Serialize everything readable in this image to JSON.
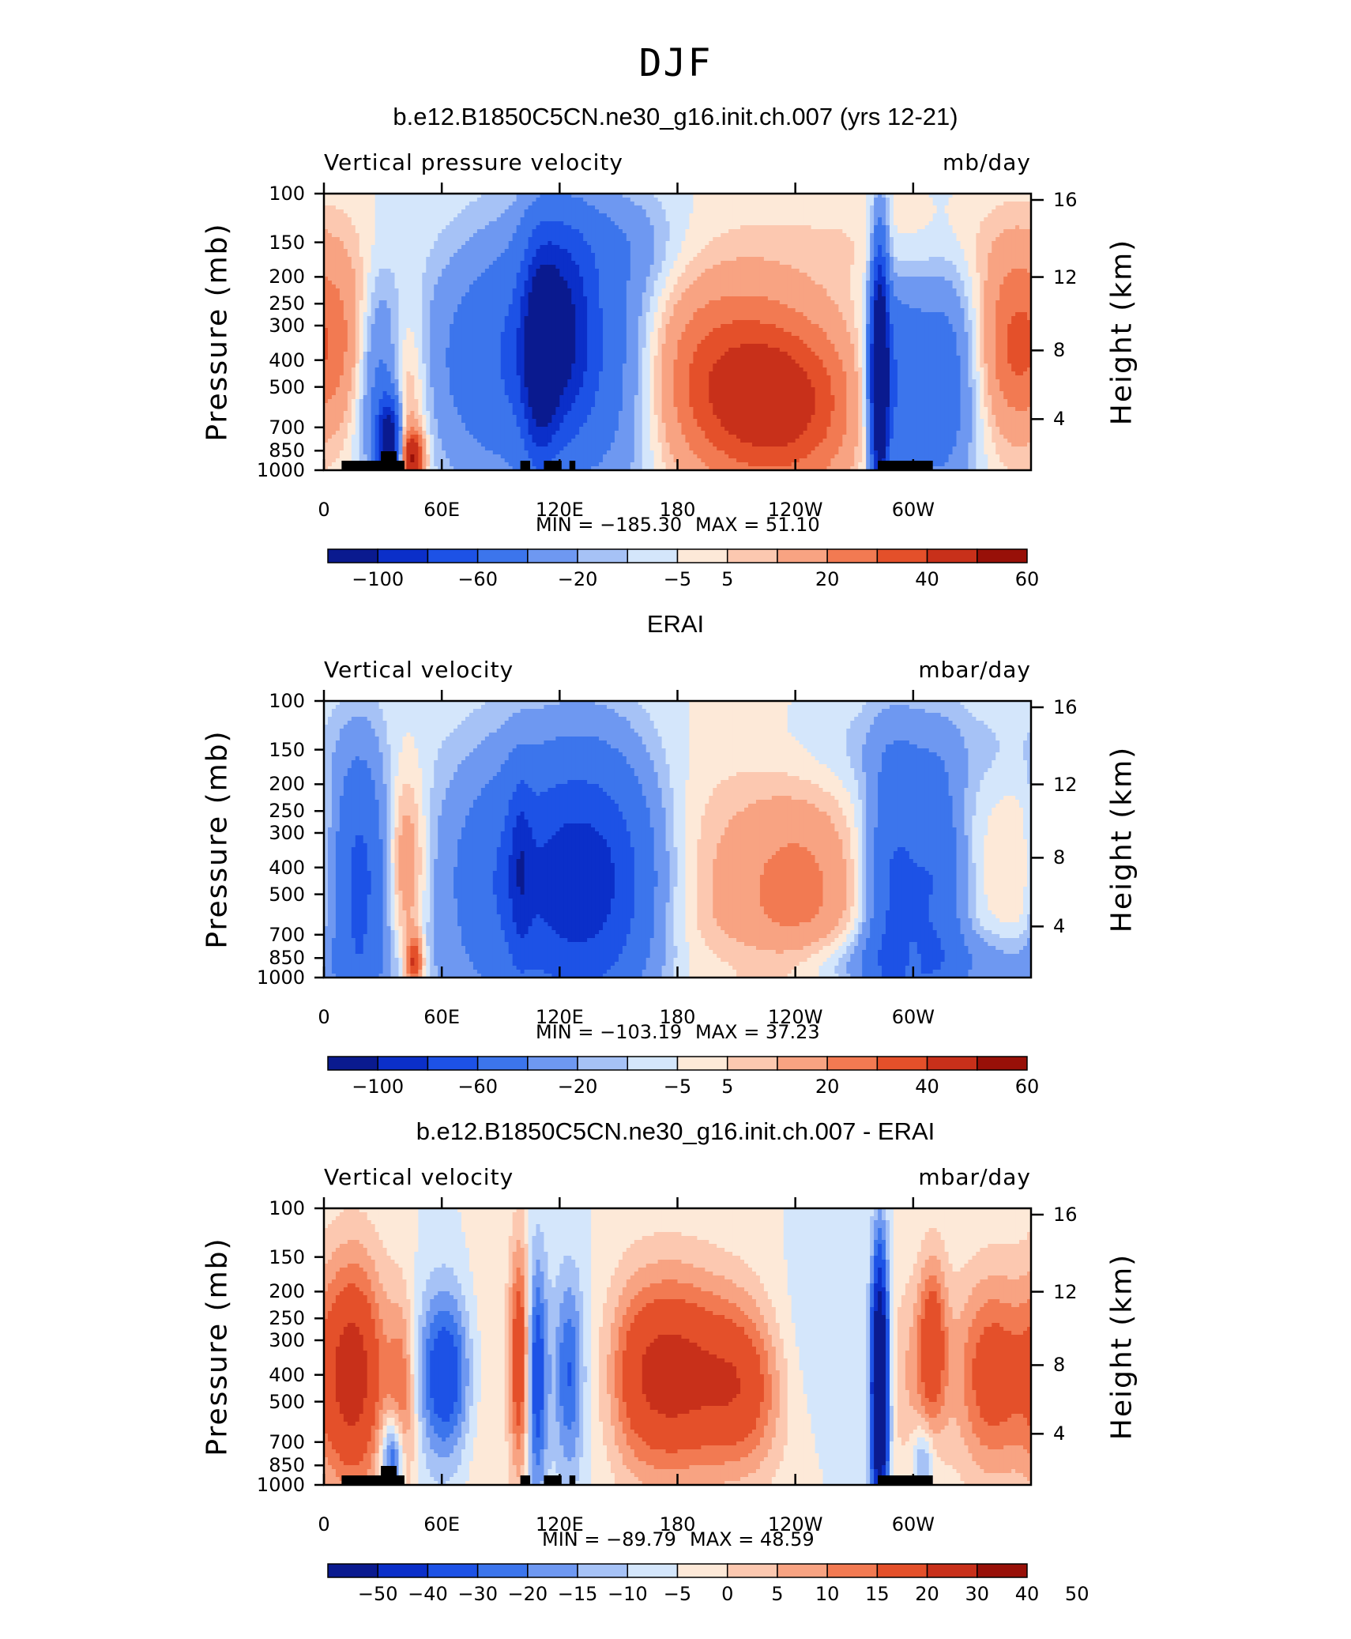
{
  "figure": {
    "title": "DJF"
  },
  "colors": {
    "scale": [
      "#0a1a8f",
      "#0b2fc9",
      "#1d52e6",
      "#3c75ec",
      "#6e98f1",
      "#a6c2f6",
      "#d4e6fb",
      "#fde9d8",
      "#fcc8b0",
      "#f8a382",
      "#f27a52",
      "#e4502a",
      "#c8301a",
      "#981008"
    ],
    "land": "#000000"
  },
  "chart_data": [
    {
      "type": "heatmap",
      "panel_title": "b.e12.B1850C5CN.ne30_g16.init.ch.007 (yrs 12-21)",
      "variable_label": "Vertical pressure velocity",
      "units": "mb/day",
      "ylabel": "Pressure (mb)",
      "y2label": "Height (km)",
      "x_ticks": [
        "0",
        "60E",
        "120E",
        "180",
        "120W",
        "60W"
      ],
      "y_ticks": [
        "100",
        "150",
        "200",
        "250",
        "300",
        "400",
        "500",
        "700",
        "850",
        "1000"
      ],
      "y2_ticks": [
        "16",
        "12",
        "8",
        "4"
      ],
      "min_label": "MIN = −185.30",
      "max_label": "MAX =   51.10",
      "colorbar_labels": [
        "−100",
        "−60",
        "−20",
        "−5",
        "5",
        "20",
        "40",
        "60"
      ],
      "xlim": [
        0,
        360
      ],
      "ylim": [
        1000,
        100
      ],
      "features": [
        {
          "lon": 15,
          "p": 350,
          "v": 22,
          "w": 14,
          "h": 0.55
        },
        {
          "lon": 40,
          "p": 550,
          "v": 32,
          "w": 8,
          "h": 0.6
        },
        {
          "lon": 45,
          "p": 900,
          "v": 55,
          "w": 4,
          "h": 0.15
        },
        {
          "lon": 30,
          "p": 450,
          "v": -40,
          "w": 10,
          "h": 0.6
        },
        {
          "lon": 33,
          "p": 800,
          "v": -110,
          "w": 4,
          "h": 0.25
        },
        {
          "lon": 100,
          "p": 400,
          "v": -40,
          "w": 32,
          "h": 0.7
        },
        {
          "lon": 120,
          "p": 300,
          "v": -62,
          "w": 12,
          "h": 0.6
        },
        {
          "lon": 110,
          "p": 400,
          "v": -55,
          "w": 6,
          "h": 0.6
        },
        {
          "lon": 150,
          "p": 450,
          "v": -22,
          "w": 18,
          "h": 0.8
        },
        {
          "lon": 145,
          "p": 150,
          "v": -12,
          "w": 25,
          "h": 0.3
        },
        {
          "lon": 200,
          "p": 450,
          "v": 30,
          "w": 36,
          "h": 0.6
        },
        {
          "lon": 235,
          "p": 600,
          "v": 34,
          "w": 28,
          "h": 0.5
        },
        {
          "lon": 300,
          "p": 150,
          "v": 5,
          "w": 60,
          "h": 0.3
        },
        {
          "lon": 283,
          "p": 450,
          "v": -130,
          "w": 3,
          "h": 0.7
        },
        {
          "lon": 290,
          "p": 500,
          "v": -40,
          "w": 10,
          "h": 0.6
        },
        {
          "lon": 315,
          "p": 500,
          "v": -30,
          "w": 12,
          "h": 0.7
        },
        {
          "lon": 350,
          "p": 350,
          "v": 28,
          "w": 12,
          "h": 0.55
        }
      ],
      "land_blocks": [
        [
          9,
          41
        ],
        [
          100,
          105
        ],
        [
          112,
          121
        ],
        [
          125,
          128
        ],
        [
          282,
          310
        ]
      ]
    },
    {
      "type": "heatmap",
      "panel_title": "ERAI",
      "variable_label": "Vertical velocity",
      "units": "mbar/day",
      "ylabel": "Pressure (mb)",
      "y2label": "Height (km)",
      "x_ticks": [
        "0",
        "60E",
        "120E",
        "180",
        "120W",
        "60W"
      ],
      "y_ticks": [
        "100",
        "150",
        "200",
        "250",
        "300",
        "400",
        "500",
        "700",
        "850",
        "1000"
      ],
      "y2_ticks": [
        "16",
        "12",
        "8",
        "4"
      ],
      "min_label": "MIN = −103.19",
      "max_label": "MAX =   37.23",
      "colorbar_labels": [
        "−100",
        "−60",
        "−20",
        "−5",
        "5",
        "20",
        "40",
        "60"
      ],
      "xlim": [
        0,
        360
      ],
      "ylim": [
        1000,
        100
      ],
      "features": [
        {
          "lon": 18,
          "p": 450,
          "v": -45,
          "w": 10,
          "h": 0.75
        },
        {
          "lon": 42,
          "p": 400,
          "v": 22,
          "w": 7,
          "h": 0.55
        },
        {
          "lon": 46,
          "p": 880,
          "v": 45,
          "w": 3,
          "h": 0.15
        },
        {
          "lon": 105,
          "p": 450,
          "v": -45,
          "w": 30,
          "h": 0.75
        },
        {
          "lon": 140,
          "p": 450,
          "v": -48,
          "w": 22,
          "h": 0.75
        },
        {
          "lon": 100,
          "p": 400,
          "v": -30,
          "w": 4,
          "h": 0.5
        },
        {
          "lon": 210,
          "p": 500,
          "v": 12,
          "w": 30,
          "h": 0.8
        },
        {
          "lon": 245,
          "p": 500,
          "v": 18,
          "w": 20,
          "h": 0.6
        },
        {
          "lon": 290,
          "p": 500,
          "v": -42,
          "w": 10,
          "h": 0.8
        },
        {
          "lon": 312,
          "p": 450,
          "v": -35,
          "w": 10,
          "h": 0.7
        },
        {
          "lon": 300,
          "p": 150,
          "v": -8,
          "w": 50,
          "h": 0.3
        },
        {
          "lon": 300,
          "p": 900,
          "v": -18,
          "w": 60,
          "h": 0.2
        },
        {
          "lon": 352,
          "p": 400,
          "v": 6,
          "w": 10,
          "h": 0.5
        },
        {
          "lon": 300,
          "p": 900,
          "v": 28,
          "w": 2,
          "h": 0.12
        }
      ],
      "land_blocks": []
    },
    {
      "type": "heatmap",
      "panel_title": "b.e12.B1850C5CN.ne30_g16.init.ch.007 - ERAI",
      "variable_label": "Vertical velocity",
      "units": "mbar/day",
      "ylabel": "Pressure (mb)",
      "y2label": "Height (km)",
      "x_ticks": [
        "0",
        "60E",
        "120E",
        "180",
        "120W",
        "60W"
      ],
      "y_ticks": [
        "100",
        "150",
        "200",
        "250",
        "300",
        "400",
        "500",
        "700",
        "850",
        "1000"
      ],
      "y2_ticks": [
        "16",
        "12",
        "8",
        "4"
      ],
      "min_label": "MIN = −89.79",
      "max_label": "MAX =   48.59",
      "colorbar_labels": [
        "−50",
        "−40",
        "−30",
        "−20",
        "−15",
        "−10",
        "−5",
        "0",
        "5",
        "10",
        "15",
        "20",
        "30",
        "40",
        "50"
      ],
      "xlim": [
        0,
        360
      ],
      "ylim": [
        1000,
        100
      ],
      "features": [
        {
          "lon": 15,
          "p": 400,
          "v": 35,
          "w": 12,
          "h": 0.7
        },
        {
          "lon": 35,
          "p": 800,
          "v": -30,
          "w": 4,
          "h": 0.25
        },
        {
          "lon": 40,
          "p": 500,
          "v": 18,
          "w": 5,
          "h": 0.6
        },
        {
          "lon": 62,
          "p": 400,
          "v": -28,
          "w": 10,
          "h": 0.5
        },
        {
          "lon": 78,
          "p": 450,
          "v": 6,
          "w": 8,
          "h": 0.8
        },
        {
          "lon": 100,
          "p": 350,
          "v": 30,
          "w": 4,
          "h": 0.7
        },
        {
          "lon": 108,
          "p": 400,
          "v": -30,
          "w": 4,
          "h": 0.7
        },
        {
          "lon": 125,
          "p": 400,
          "v": -25,
          "w": 6,
          "h": 0.6
        },
        {
          "lon": 142,
          "p": 400,
          "v": -8,
          "w": 8,
          "h": 0.6
        },
        {
          "lon": 175,
          "p": 400,
          "v": 35,
          "w": 26,
          "h": 0.6
        },
        {
          "lon": 215,
          "p": 450,
          "v": 18,
          "w": 14,
          "h": 0.5
        },
        {
          "lon": 245,
          "p": 300,
          "v": -4,
          "w": 16,
          "h": 0.5
        },
        {
          "lon": 283,
          "p": 450,
          "v": -75,
          "w": 3,
          "h": 0.75
        },
        {
          "lon": 300,
          "p": 400,
          "v": 10,
          "w": 10,
          "h": 0.6
        },
        {
          "lon": 310,
          "p": 300,
          "v": 22,
          "w": 5,
          "h": 0.5
        },
        {
          "lon": 340,
          "p": 400,
          "v": 25,
          "w": 14,
          "h": 0.6
        },
        {
          "lon": 305,
          "p": 800,
          "v": -15,
          "w": 4,
          "h": 0.2
        }
      ],
      "land_blocks": [
        [
          9,
          41
        ],
        [
          100,
          105
        ],
        [
          112,
          121
        ],
        [
          125,
          128
        ],
        [
          282,
          310
        ]
      ]
    }
  ]
}
